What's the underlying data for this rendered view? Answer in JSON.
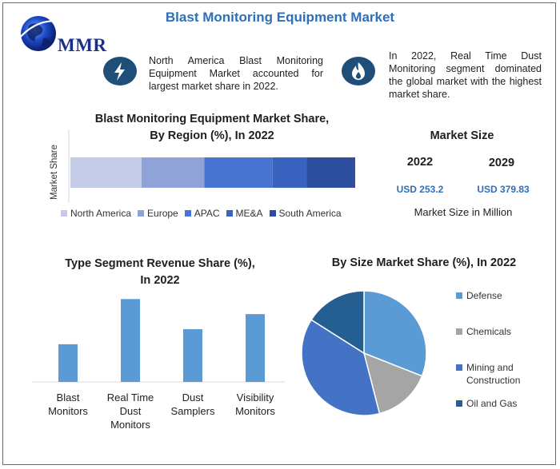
{
  "header": {
    "title": "Blast Monitoring Equipment Market",
    "logo_text": "MMR"
  },
  "info": [
    {
      "icon": "lightning-icon",
      "text": "North America Blast Monitoring Equipment Market accounted for largest market share in 2022."
    },
    {
      "icon": "flame-icon",
      "text": "In 2022, Real Time Dust Monitoring segment dominated the global market with the highest market share."
    }
  ],
  "market_size": {
    "title": "Market Size",
    "year1": "2022",
    "value1": "USD 253.2",
    "year2": "2029",
    "value2": "USD 379.83",
    "note": "Market Size in Million"
  },
  "colors": {
    "accent": "#2f6fb8",
    "north_america": "#c3cbe7",
    "europe": "#8fa3d8",
    "apac": "#4774d1",
    "mea": "#3a62bf",
    "south_america": "#2e4f9e",
    "bar": "#5b9bd5",
    "defense": "#5b9bd5",
    "chemicals": "#a5a5a5",
    "mining": "#4472c4",
    "oil_gas": "#255e91"
  },
  "chart_data": [
    {
      "type": "bar",
      "orientation": "horizontal-stacked",
      "title": "Blast Monitoring Equipment Market Share, By Region (%), In 2022",
      "title_line1": "Blast Monitoring Equipment Market Share,",
      "title_line2": "By Region (%), In 2022",
      "ylabel": "Market Share",
      "categories": [
        ""
      ],
      "series": [
        {
          "name": "North America",
          "values": [
            25
          ]
        },
        {
          "name": "Europe",
          "values": [
            22
          ]
        },
        {
          "name": "APAC",
          "values": [
            24
          ]
        },
        {
          "name": "ME&A",
          "values": [
            12
          ]
        },
        {
          "name": "South America",
          "values": [
            17
          ]
        }
      ],
      "xlim": [
        0,
        100
      ],
      "grid": false,
      "legend": "bottom"
    },
    {
      "type": "bar",
      "title": "Type Segment Revenue Share (%), In 2022",
      "title_line1": "Type Segment Revenue Share (%),",
      "title_line2": "In 2022",
      "categories": [
        "Blast Monitors",
        "Real Time Dust Monitors",
        "Dust Samplers",
        "Visibility Monitors"
      ],
      "category_lines": [
        [
          "Blast",
          "Monitors"
        ],
        [
          "Real Time",
          "Dust",
          "Monitors"
        ],
        [
          "Dust",
          "Samplers"
        ],
        [
          "Visibility",
          "Monitors"
        ]
      ],
      "values": [
        15,
        33,
        21,
        27
      ],
      "ylim": [
        0,
        35
      ],
      "grid": false
    },
    {
      "type": "pie",
      "title": "By Size Market Share (%), In 2022",
      "categories": [
        "Defense",
        "Chemicals",
        "Mining and Construction",
        "Oil and Gas"
      ],
      "legend_lines": [
        [
          "Defense"
        ],
        [
          "Chemicals"
        ],
        [
          "Mining and",
          "Construction"
        ],
        [
          "Oil and Gas"
        ]
      ],
      "values": [
        31,
        15,
        38,
        16
      ],
      "legend": "right"
    }
  ]
}
